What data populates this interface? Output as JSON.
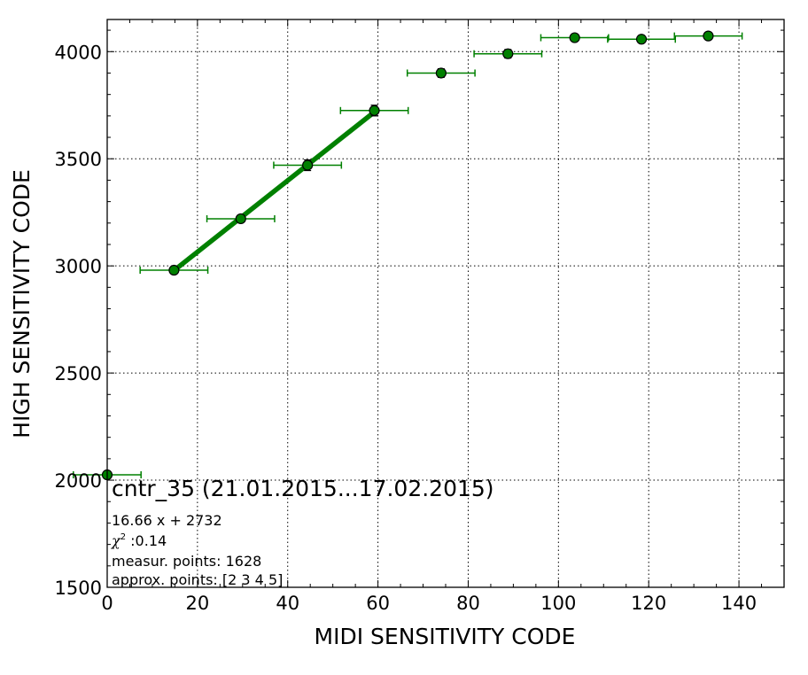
{
  "chart_data": {
    "type": "scatter",
    "xlabel": "MIDI SENSITIVITY CODE",
    "ylabel": "HIGH SENSITIVITY CODE",
    "xlim": [
      0,
      150
    ],
    "ylim": [
      1500,
      4150
    ],
    "xticks": [
      0,
      20,
      40,
      60,
      80,
      100,
      120,
      140
    ],
    "yticks": [
      1500,
      2000,
      2500,
      3000,
      3500,
      4000
    ],
    "grid": true,
    "colors": {
      "marker": "#008000",
      "fit_line": "#008000",
      "marker_edge": "#000000"
    },
    "points": [
      {
        "x": 0,
        "y": 2025,
        "xerr": 7.5,
        "yerr": 10
      },
      {
        "x": 14.8,
        "y": 2980,
        "xerr": 7.5,
        "yerr": 10
      },
      {
        "x": 29.6,
        "y": 3220,
        "xerr": 7.5,
        "yerr": 12
      },
      {
        "x": 44.4,
        "y": 3470,
        "xerr": 7.5,
        "yerr": 25
      },
      {
        "x": 59.2,
        "y": 3725,
        "xerr": 7.5,
        "yerr": 25
      },
      {
        "x": 74,
        "y": 3900,
        "xerr": 7.5,
        "yerr": 20
      },
      {
        "x": 88.8,
        "y": 3990,
        "xerr": 7.5,
        "yerr": 20
      },
      {
        "x": 103.6,
        "y": 4065,
        "xerr": 7.5,
        "yerr": 8
      },
      {
        "x": 118.4,
        "y": 4058,
        "xerr": 7.5,
        "yerr": 8
      },
      {
        "x": 133.2,
        "y": 4073,
        "xerr": 7.5,
        "yerr": 8
      }
    ],
    "fit": {
      "slope": 16.66,
      "intercept": 2732,
      "x_from": 14.8,
      "x_to": 59.2
    }
  },
  "annotation": {
    "title": "cntr_35 (21.01.2015...17.02.2015)",
    "equation": "16.66 x + 2732",
    "chi2_symbol": "χ",
    "chi2_sup": "2",
    "chi2_value": " :0.14",
    "measur_points": "measur. points: 1628",
    "approx_points": "approx. points: [2 3 4 5]"
  }
}
